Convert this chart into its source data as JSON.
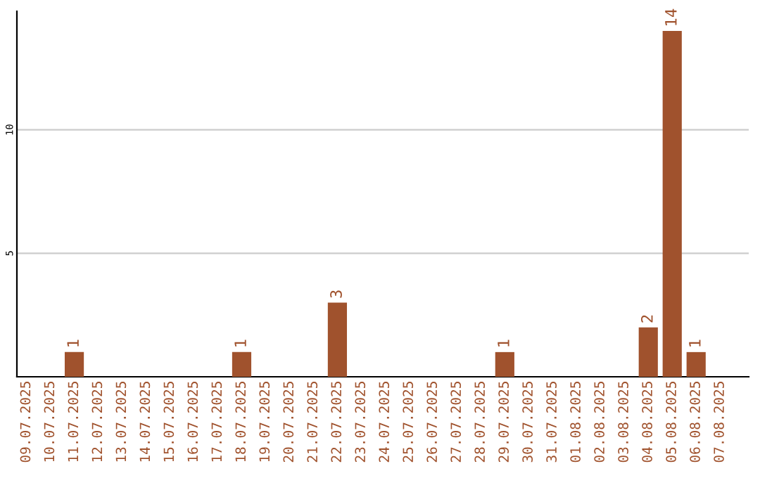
{
  "chart_data": {
    "type": "bar",
    "categories": [
      "09.07.2025",
      "10.07.2025",
      "11.07.2025",
      "12.07.2025",
      "13.07.2025",
      "14.07.2025",
      "15.07.2025",
      "16.07.2025",
      "17.07.2025",
      "18.07.2025",
      "19.07.2025",
      "20.07.2025",
      "21.07.2025",
      "22.07.2025",
      "23.07.2025",
      "24.07.2025",
      "25.07.2025",
      "26.07.2025",
      "27.07.2025",
      "28.07.2025",
      "29.07.2025",
      "30.07.2025",
      "31.07.2025",
      "01.08.2025",
      "02.08.2025",
      "03.08.2025",
      "04.08.2025",
      "05.08.2025",
      "06.08.2025",
      "07.08.2025"
    ],
    "values": [
      0,
      0,
      1,
      0,
      0,
      0,
      0,
      0,
      0,
      1,
      0,
      0,
      0,
      3,
      0,
      0,
      0,
      0,
      0,
      0,
      1,
      0,
      0,
      0,
      0,
      0,
      2,
      14,
      1,
      0
    ],
    "value_labels": [
      null,
      null,
      "1",
      null,
      null,
      null,
      null,
      null,
      null,
      "1",
      null,
      null,
      null,
      "3",
      null,
      null,
      null,
      null,
      null,
      null,
      "1",
      null,
      null,
      null,
      null,
      null,
      "2",
      "14",
      "1",
      null
    ],
    "color": "#a0522d",
    "ylim": [
      0,
      14.8
    ],
    "yticks": [
      5,
      10
    ],
    "grid": "y"
  }
}
